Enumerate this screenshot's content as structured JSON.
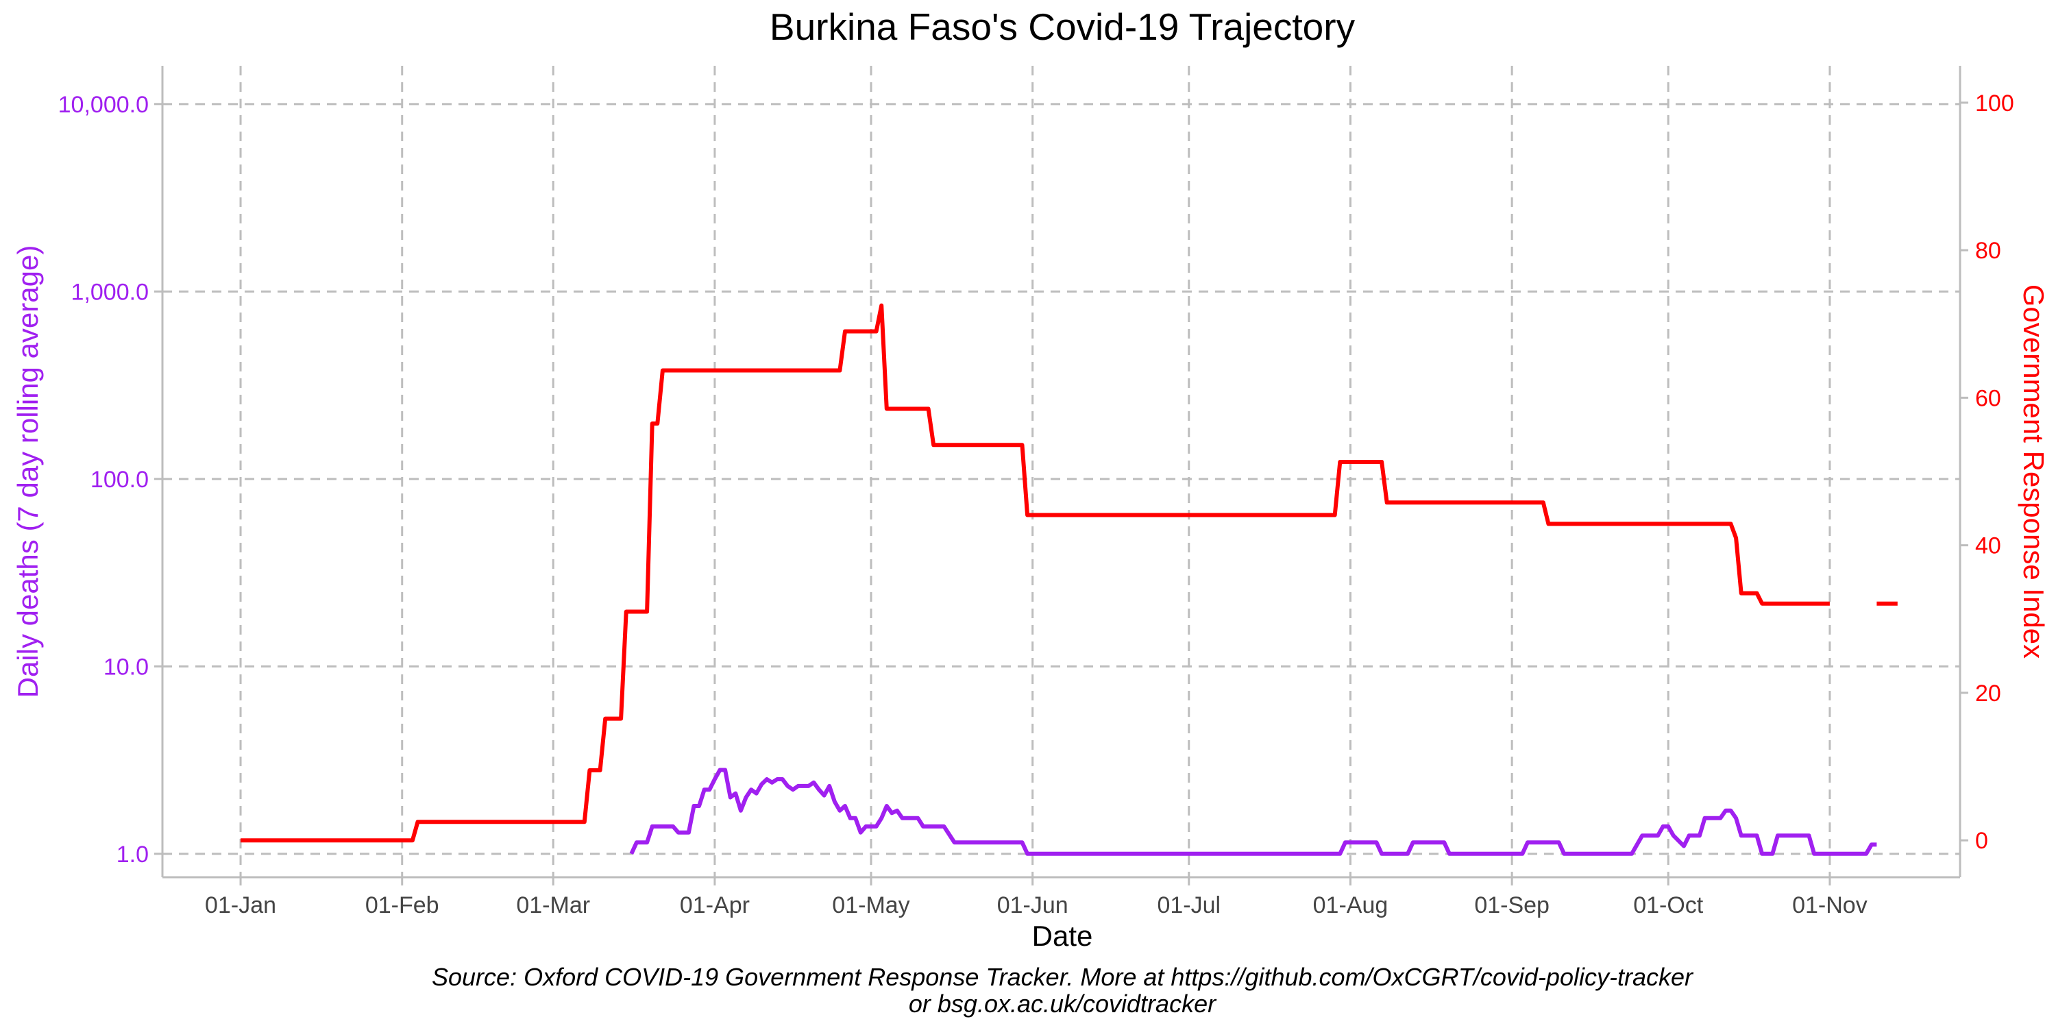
{
  "chart_data": {
    "type": "line",
    "title": "Burkina Faso's Covid-19 Trajectory",
    "xlabel": "Date",
    "ylabel_left": "Daily deaths (7 day rolling average)",
    "ylabel_right": "Government Response Index",
    "caption_line1": "Source: Oxford COVID-19 Government Response Tracker. More at https://github.com/OxCGRT/covid-policy-tracker",
    "caption_line2": "or bsg.ox.ac.uk/covidtracker",
    "x_ticks": [
      "01-Jan",
      "01-Feb",
      "01-Mar",
      "01-Apr",
      "01-May",
      "01-Jun",
      "01-Jul",
      "01-Aug",
      "01-Sep",
      "01-Oct",
      "01-Nov"
    ],
    "xlim": [
      "2019-12-17",
      "2020-11-26"
    ],
    "left_axis": {
      "scale": "log10",
      "ylim": [
        0.75,
        16000
      ],
      "ticks": [
        1,
        10,
        100,
        1000,
        10000
      ],
      "tick_labels": [
        "1.0",
        "10.0",
        "100.0",
        "1,000.0",
        "10,000.0"
      ]
    },
    "right_axis": {
      "scale": "linear",
      "ylim": [
        -5,
        105
      ],
      "ticks": [
        0,
        20,
        40,
        60,
        80,
        100
      ],
      "tick_labels": [
        "0",
        "20",
        "40",
        "60",
        "80",
        "100"
      ]
    },
    "colors": {
      "deaths": "#a020f0",
      "response": "#ff0000",
      "grid": "#bdbdbd",
      "axis_text": "#444444"
    },
    "series": [
      {
        "name": "Daily deaths (7 day rolling average)",
        "axis": "left",
        "color": "#a020f0",
        "segments": [
          [
            [
              "2020-03-16",
              1.0
            ],
            [
              "2020-03-17",
              1.15
            ],
            [
              "2020-03-19",
              1.15
            ],
            [
              "2020-03-20",
              1.4
            ],
            [
              "2020-03-24",
              1.4
            ],
            [
              "2020-03-25",
              1.3
            ],
            [
              "2020-03-27",
              1.3
            ],
            [
              "2020-03-28",
              1.8
            ],
            [
              "2020-03-29",
              1.8
            ],
            [
              "2020-03-30",
              2.2
            ],
            [
              "2020-03-31",
              2.2
            ],
            [
              "2020-04-01",
              2.5
            ],
            [
              "2020-04-02",
              2.8
            ],
            [
              "2020-04-03",
              2.8
            ],
            [
              "2020-04-04",
              2.0
            ],
            [
              "2020-04-05",
              2.1
            ],
            [
              "2020-04-06",
              1.7
            ],
            [
              "2020-04-07",
              2.0
            ],
            [
              "2020-04-08",
              2.2
            ],
            [
              "2020-04-09",
              2.1
            ],
            [
              "2020-04-10",
              2.35
            ],
            [
              "2020-04-11",
              2.5
            ],
            [
              "2020-04-12",
              2.4
            ],
            [
              "2020-04-13",
              2.5
            ],
            [
              "2020-04-14",
              2.5
            ],
            [
              "2020-04-15",
              2.3
            ],
            [
              "2020-04-16",
              2.2
            ],
            [
              "2020-04-17",
              2.3
            ],
            [
              "2020-04-19",
              2.3
            ],
            [
              "2020-04-20",
              2.4
            ],
            [
              "2020-04-21",
              2.2
            ],
            [
              "2020-04-22",
              2.05
            ],
            [
              "2020-04-23",
              2.3
            ],
            [
              "2020-04-24",
              1.9
            ],
            [
              "2020-04-25",
              1.7
            ],
            [
              "2020-04-26",
              1.8
            ],
            [
              "2020-04-27",
              1.55
            ],
            [
              "2020-04-28",
              1.55
            ],
            [
              "2020-04-29",
              1.3
            ],
            [
              "2020-04-30",
              1.4
            ],
            [
              "2020-05-02",
              1.4
            ],
            [
              "2020-05-03",
              1.55
            ],
            [
              "2020-05-04",
              1.8
            ],
            [
              "2020-05-05",
              1.65
            ],
            [
              "2020-05-06",
              1.7
            ],
            [
              "2020-05-07",
              1.55
            ],
            [
              "2020-05-10",
              1.55
            ],
            [
              "2020-05-11",
              1.4
            ],
            [
              "2020-05-15",
              1.4
            ],
            [
              "2020-05-17",
              1.15
            ],
            [
              "2020-05-30",
              1.15
            ],
            [
              "2020-05-31",
              1.0
            ],
            [
              "2020-07-30",
              1.0
            ],
            [
              "2020-07-31",
              1.15
            ],
            [
              "2020-08-06",
              1.15
            ],
            [
              "2020-08-07",
              1.0
            ],
            [
              "2020-08-12",
              1.0
            ],
            [
              "2020-08-13",
              1.15
            ],
            [
              "2020-08-19",
              1.15
            ],
            [
              "2020-08-20",
              1.0
            ],
            [
              "2020-09-03",
              1.0
            ],
            [
              "2020-09-04",
              1.15
            ],
            [
              "2020-09-10",
              1.15
            ],
            [
              "2020-09-11",
              1.0
            ],
            [
              "2020-09-24",
              1.0
            ],
            [
              "2020-09-26",
              1.25
            ],
            [
              "2020-09-29",
              1.25
            ],
            [
              "2020-09-30",
              1.4
            ],
            [
              "2020-10-01",
              1.4
            ],
            [
              "2020-10-02",
              1.25
            ],
            [
              "2020-10-04",
              1.1
            ],
            [
              "2020-10-05",
              1.25
            ],
            [
              "2020-10-07",
              1.25
            ],
            [
              "2020-10-08",
              1.55
            ],
            [
              "2020-10-11",
              1.55
            ],
            [
              "2020-10-12",
              1.7
            ],
            [
              "2020-10-13",
              1.7
            ],
            [
              "2020-10-14",
              1.55
            ],
            [
              "2020-10-15",
              1.25
            ],
            [
              "2020-10-18",
              1.25
            ],
            [
              "2020-10-19",
              1.0
            ],
            [
              "2020-10-21",
              1.0
            ],
            [
              "2020-10-22",
              1.25
            ],
            [
              "2020-10-28",
              1.25
            ],
            [
              "2020-10-29",
              1.0
            ],
            [
              "2020-11-08",
              1.0
            ],
            [
              "2020-11-09",
              1.12
            ],
            [
              "2020-11-10",
              1.12
            ]
          ]
        ]
      },
      {
        "name": "Government Response Index",
        "axis": "right",
        "color": "#ff0000",
        "segments": [
          [
            [
              "2020-01-01",
              0
            ],
            [
              "2020-02-03",
              0
            ],
            [
              "2020-02-04",
              2.5
            ],
            [
              "2020-03-07",
              2.5
            ],
            [
              "2020-03-08",
              9.5
            ],
            [
              "2020-03-10",
              9.5
            ],
            [
              "2020-03-11",
              16.5
            ],
            [
              "2020-03-14",
              16.5
            ],
            [
              "2020-03-15",
              31
            ],
            [
              "2020-03-19",
              31
            ],
            [
              "2020-03-20",
              56.5
            ],
            [
              "2020-03-21",
              56.5
            ],
            [
              "2020-03-22",
              63.7
            ],
            [
              "2020-04-25",
              63.7
            ],
            [
              "2020-04-26",
              69
            ],
            [
              "2020-05-02",
              69
            ],
            [
              "2020-05-03",
              72.5
            ],
            [
              "2020-05-04",
              58.5
            ],
            [
              "2020-05-12",
              58.5
            ],
            [
              "2020-05-13",
              53.6
            ],
            [
              "2020-05-30",
              53.6
            ],
            [
              "2020-05-31",
              44.1
            ],
            [
              "2020-07-29",
              44.1
            ],
            [
              "2020-07-30",
              51.3
            ],
            [
              "2020-08-07",
              51.3
            ],
            [
              "2020-08-08",
              45.8
            ],
            [
              "2020-09-07",
              45.8
            ],
            [
              "2020-09-08",
              42.9
            ],
            [
              "2020-10-13",
              42.9
            ],
            [
              "2020-10-14",
              41
            ],
            [
              "2020-10-15",
              33.5
            ],
            [
              "2020-10-18",
              33.5
            ],
            [
              "2020-10-19",
              32.1
            ],
            [
              "2020-11-01",
              32.1
            ]
          ],
          [
            [
              "2020-11-10",
              32.1
            ],
            [
              "2020-11-14",
              32.1
            ]
          ]
        ]
      }
    ]
  }
}
